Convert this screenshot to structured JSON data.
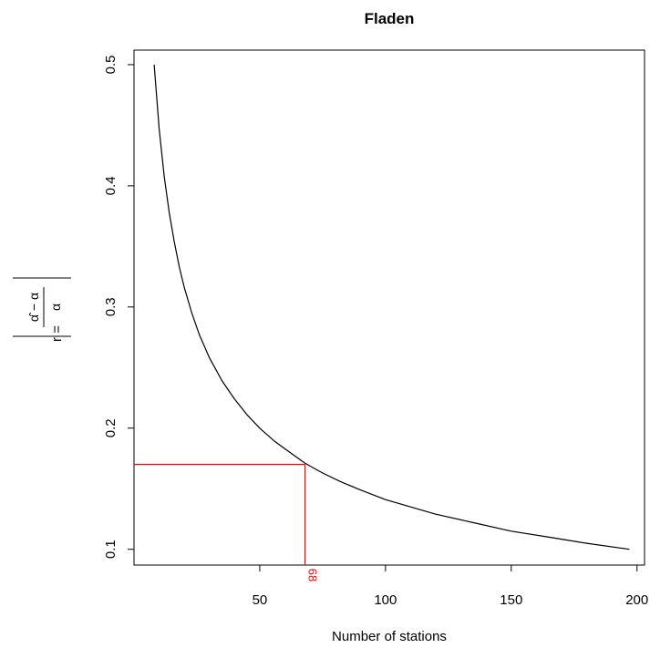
{
  "chart_data": {
    "type": "line",
    "title": "Fladen",
    "xlabel": "Number of stations",
    "ylabel": {
      "lhs": "r =",
      "numerator": "α̂ − α",
      "denominator": "α"
    },
    "xlim": [
      0,
      203
    ],
    "ylim": [
      0.087,
      0.512
    ],
    "x_ticks": [
      50,
      100,
      150,
      200
    ],
    "x_tick_labels": [
      "50",
      "100",
      "150",
      "200"
    ],
    "y_ticks": [
      0.1,
      0.2,
      0.3,
      0.4,
      0.5
    ],
    "y_tick_labels": [
      "0.1",
      "0.2",
      "0.3",
      "0.4",
      "0.5"
    ],
    "grid": false,
    "legend": "none",
    "series": [
      {
        "color": "#000000",
        "x": [
          8,
          10,
          12,
          14,
          16,
          18,
          20,
          23,
          26,
          30,
          35,
          40,
          45,
          50,
          56,
          62,
          68,
          75,
          82,
          90,
          100,
          110,
          120,
          135,
          150,
          165,
          180,
          197
        ],
        "y": [
          0.5,
          0.447,
          0.408,
          0.378,
          0.354,
          0.333,
          0.316,
          0.295,
          0.277,
          0.258,
          0.239,
          0.224,
          0.211,
          0.2,
          0.189,
          0.18,
          0.171,
          0.163,
          0.156,
          0.149,
          0.141,
          0.135,
          0.129,
          0.122,
          0.115,
          0.11,
          0.105,
          0.1
        ]
      }
    ],
    "annotations": [
      {
        "type": "reference",
        "color": "#ff0000",
        "x": 68,
        "y": 0.17,
        "label": "68"
      }
    ]
  }
}
